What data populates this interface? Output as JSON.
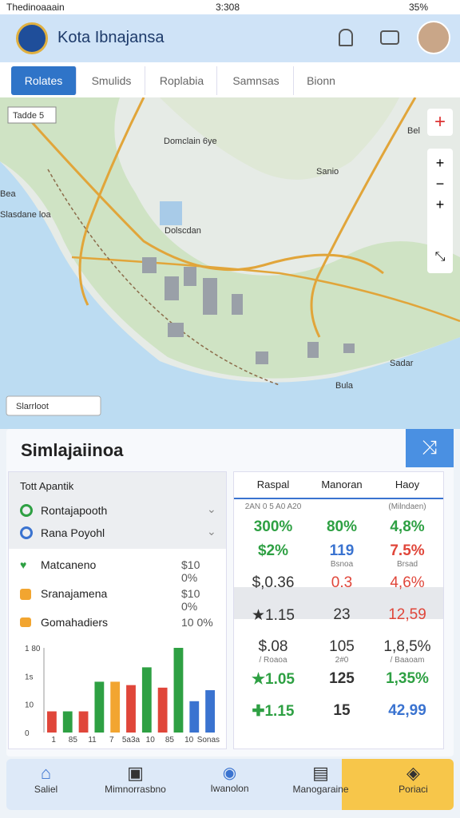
{
  "status_bar": {
    "left": "Thedinoaaain",
    "time": "3:308",
    "battery": "35%"
  },
  "header": {
    "title": "Kota Ibnajansa"
  },
  "tabs": [
    "Rolates",
    "Smulids",
    "Roplabia",
    "Samnsas",
    "Bionn"
  ],
  "map": {
    "labels": [
      "Tadde 5",
      "Domclain 6ye",
      "Bel",
      "Slasdane loa",
      "Dolscdan",
      "Sanio",
      "Bea",
      "Sadar",
      "Bula"
    ],
    "search": "Slarrloot"
  },
  "panel": {
    "title": "Simlajaiinoa",
    "left": {
      "heading": "Tott Apantik",
      "filters": [
        "Rontajapooth",
        "Rana Poyohl"
      ],
      "items": [
        {
          "name": "Matcaneno",
          "value": "$10 0%"
        },
        {
          "name": "Sranajamena",
          "value": "$10 0%"
        },
        {
          "name": "Gomahadiers",
          "value": "10 0%"
        }
      ],
      "chart": {
        "ylim": [
          0,
          100
        ],
        "y_labels": [
          "1 80",
          "1s",
          "10",
          "0"
        ],
        "x_labels": [
          "1",
          "85",
          "11",
          "7",
          "5a3a",
          "10",
          "85",
          "10",
          "Sonas"
        ],
        "values": [
          25,
          25,
          25,
          60,
          60,
          56,
          77,
          53,
          100,
          37,
          50
        ],
        "colors": [
          "#e0463a",
          "#2ea043",
          "#e0463a",
          "#2ea043",
          "#f2a530",
          "#e0463a",
          "#2ea043",
          "#e0463a",
          "#2ea043",
          "#3a73d0",
          "#3a73d0"
        ]
      }
    },
    "table": {
      "headers": [
        "Raspal",
        "Manoran",
        "Haoy"
      ],
      "rows": [
        {
          "cells": [
            "300%",
            "80%",
            "4,8%"
          ],
          "subs": [
            "2AN 0 5 A0 A20",
            "",
            "(Milndaen)"
          ]
        },
        {
          "cells": [
            "$2%",
            "119",
            "7.5%"
          ],
          "subs": [
            "",
            "Bsnoa",
            "Brsad"
          ]
        },
        {
          "cells": [
            "$,0.36",
            "0.3",
            "4,6%"
          ],
          "subs": [
            "",
            "",
            ""
          ]
        },
        {
          "cells": [
            "★1.15",
            "23",
            "12,59"
          ],
          "subs": [
            "",
            "",
            ""
          ]
        },
        {
          "cells": [
            "$.08",
            "105",
            "1,8,5%"
          ],
          "subs": [
            "/ Roaoa",
            "2#0",
            "/ Baaoam"
          ]
        },
        {
          "cells": [
            "★1.05",
            "125",
            "1,35%"
          ],
          "subs": [
            "",
            "",
            ""
          ]
        },
        {
          "cells": [
            "✚1.15",
            "15",
            "42,99"
          ],
          "subs": [
            "",
            "",
            ""
          ]
        }
      ]
    }
  },
  "bottom_nav": [
    "Saliel",
    "Mimnorrasbno",
    "Iwanolon",
    "Manogaraine",
    "Poriaci"
  ]
}
